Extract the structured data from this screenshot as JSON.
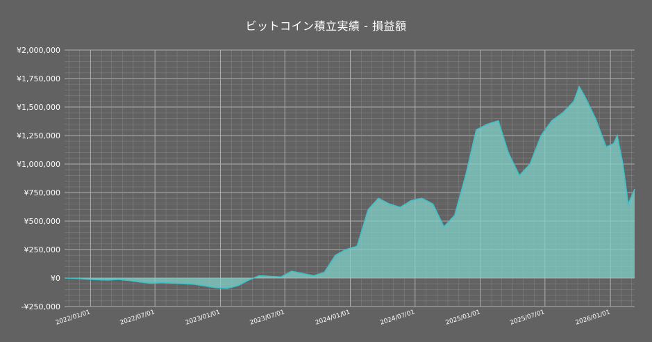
{
  "chart_data": {
    "type": "area",
    "title": "ビットコイン積立実績 - 損益額",
    "xlabel": "",
    "ylabel": "",
    "xlim": [
      "2021-10-20",
      "2026-03-10"
    ],
    "ylim": [
      -250000,
      2000000
    ],
    "y_ticks": [
      -250000,
      0,
      250000,
      500000,
      750000,
      1000000,
      1250000,
      1500000,
      1750000,
      2000000
    ],
    "y_tick_labels": [
      "-¥250,000",
      "¥0",
      "¥250,000",
      "¥500,000",
      "¥750,000",
      "¥1,000,000",
      "¥1,250,000",
      "¥1,500,000",
      "¥1,750,000",
      "¥2,000,000"
    ],
    "x_ticks": [
      "2022-01-01",
      "2022-07-01",
      "2023-01-01",
      "2023-07-01",
      "2024-01-01",
      "2024-07-01",
      "2025-01-01",
      "2025-07-01",
      "2026-01-01"
    ],
    "x_tick_labels": [
      "2022/01/01",
      "2022/07/01",
      "2023/01/01",
      "2023/07/01",
      "2024/01/01",
      "2024/07/01",
      "2025/01/01",
      "2025/07/01",
      "2026/01/01"
    ],
    "grid": true,
    "legend": "none",
    "colors": {
      "background": "#626262",
      "line": "#3ec1c9",
      "fill": "#7fd1c8",
      "grid": "#8c8c8c",
      "text": "#ffffff"
    },
    "series": [
      {
        "x": [
          "2021-10-20",
          "2021-11-20",
          "2021-12-20",
          "2022-01-20",
          "2022-02-20",
          "2022-03-20",
          "2022-04-20",
          "2022-05-20",
          "2022-06-20",
          "2022-07-20",
          "2022-08-20",
          "2022-09-20",
          "2022-10-20",
          "2022-11-20",
          "2022-12-20",
          "2023-01-20",
          "2023-02-20",
          "2023-03-20",
          "2023-04-20",
          "2023-05-20",
          "2023-06-20",
          "2023-07-20",
          "2023-08-20",
          "2023-09-20",
          "2023-10-20",
          "2023-11-20",
          "2023-12-20",
          "2024-01-20",
          "2024-02-20",
          "2024-03-20",
          "2024-04-20",
          "2024-05-20",
          "2024-06-20",
          "2024-07-20",
          "2024-08-20",
          "2024-09-20",
          "2024-10-20",
          "2024-11-20",
          "2024-12-20",
          "2025-01-20",
          "2025-02-20",
          "2025-03-20",
          "2025-04-20",
          "2025-05-20",
          "2025-06-20",
          "2025-07-20",
          "2025-08-20",
          "2025-09-20",
          "2025-10-05",
          "2025-10-20",
          "2025-11-20",
          "2025-12-20",
          "2026-01-10",
          "2026-01-20",
          "2026-02-05",
          "2026-02-20",
          "2026-03-10"
        ],
        "y": [
          0,
          -3000,
          -10000,
          -15000,
          -18000,
          -12000,
          -22000,
          -35000,
          -45000,
          -40000,
          -45000,
          -50000,
          -55000,
          -70000,
          -85000,
          -90000,
          -65000,
          -20000,
          20000,
          15000,
          10000,
          60000,
          40000,
          20000,
          50000,
          200000,
          250000,
          280000,
          600000,
          700000,
          650000,
          620000,
          680000,
          700000,
          650000,
          450000,
          550000,
          900000,
          1300000,
          1350000,
          1380000,
          1100000,
          900000,
          1000000,
          1250000,
          1380000,
          1450000,
          1550000,
          1680000,
          1600000,
          1400000,
          1150000,
          1180000,
          1250000,
          1000000,
          650000,
          780000
        ]
      }
    ]
  }
}
